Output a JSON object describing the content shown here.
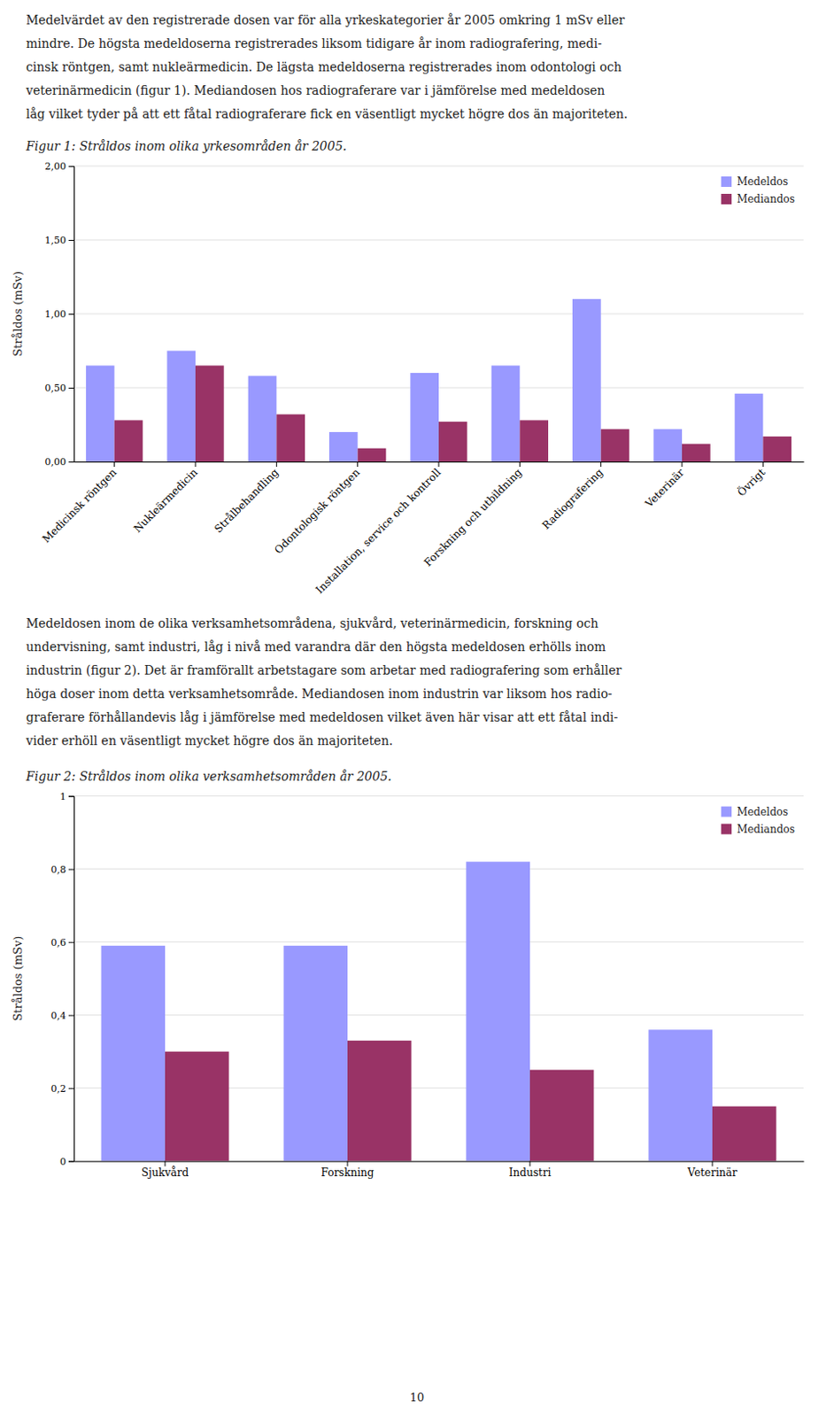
{
  "intro_lines": [
    "Medelvärdet av den registrerade dosen var för alla yrkeskategorier år 2005 omkring 1 mSv eller",
    "mindre. De högsta medeldoserna registrerades liksom tidigare år inom radiografering, medi-",
    "cinsk röntgen, samt nukleärmedicin. De lägsta medeldoserna registrerades inom odontologi och",
    "veterinärmedicin (figur 1). Mediandosen hos radiograferare var i jämförelse med medeldosen",
    "låg vilket tyder på att ett fåtal radiograferare fick en väsentligt mycket högre dos än majoriteten."
  ],
  "middle_lines": [
    "Medeldosen inom de olika verksamhetsområdena, sjukvård, veterinärmedicin, forskning och",
    "undervisning, samt industri, låg i nivå med varandra där den högsta medeldosen erhölls inom",
    "industrin (figur 2). Det är framförallt arbetstagare som arbetar med radiografering som erhåller",
    "höga doser inom detta verksamhetsområde. Mediandosen inom industrin var liksom hos radio-",
    "graferare förhållandevis låg i jämförelse med medeldosen vilket även här visar att ett fåtal indi-",
    "vider erhöll en väsentligt mycket högre dos än majoriteten."
  ],
  "page_number": "10",
  "chart_data": [
    {
      "type": "bar",
      "title": "Figur 1: Stråldos inom olika yrkesområden år 2005.",
      "categories": [
        "Medicinsk röntgen",
        "Nukleärmedicin",
        "Strålbehandling",
        "Odontologisk röntgen",
        "Installation, service och kontroll",
        "Forskning och utbildning",
        "Radiografering",
        "Veterinär",
        "Övrigt"
      ],
      "series": [
        {
          "name": "Medeldos",
          "color": "#9999FF",
          "values": [
            0.65,
            0.75,
            0.58,
            0.2,
            0.6,
            0.65,
            1.1,
            0.22,
            0.46
          ]
        },
        {
          "name": "Mediandos",
          "color": "#993366",
          "values": [
            0.28,
            0.65,
            0.32,
            0.09,
            0.27,
            0.28,
            0.22,
            0.12,
            0.17
          ]
        }
      ],
      "ylabel": "Stråldos (mSv)",
      "ylim": [
        0,
        2.0
      ],
      "yticks": [
        {
          "value": 0,
          "label": "0,00"
        },
        {
          "value": 0.5,
          "label": "0,50"
        },
        {
          "value": 1.0,
          "label": "1,00"
        },
        {
          "value": 1.5,
          "label": "1,50"
        },
        {
          "value": 2.0,
          "label": "2,00"
        }
      ],
      "grid": true,
      "legend": "upper right"
    },
    {
      "type": "bar",
      "title": "Figur 2: Stråldos inom olika verksamhetsområden år 2005.",
      "categories": [
        "Sjukvård",
        "Forskning",
        "Industri",
        "Veterinär"
      ],
      "series": [
        {
          "name": "Medeldos",
          "color": "#9999FF",
          "values": [
            0.59,
            0.59,
            0.82,
            0.36
          ]
        },
        {
          "name": "Mediandos",
          "color": "#993366",
          "values": [
            0.3,
            0.33,
            0.25,
            0.15
          ]
        }
      ],
      "ylabel": "Stråldos (mSv)",
      "ylim": [
        0,
        1.0
      ],
      "yticks": [
        0,
        {
          "value": 0.2,
          "label": "0,2"
        },
        {
          "value": 0.4,
          "label": "0,4"
        },
        {
          "value": 0.6,
          "label": "0,6"
        },
        {
          "value": 0.8,
          "label": "0,8"
        },
        1
      ],
      "grid": true,
      "legend": "upper right"
    }
  ]
}
